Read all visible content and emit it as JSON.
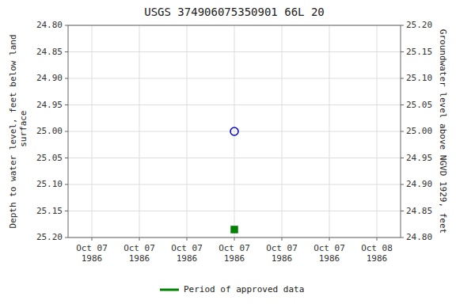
{
  "chart_data": {
    "type": "scatter",
    "title": "USGS 374906075350901 66L 20",
    "ylabel": "Depth to water level, feet below land\n surface",
    "y2label": "Groundwater level above NGVD 1929, feet",
    "categories": [
      "Oct 07\n1986",
      "Oct 07\n1986",
      "Oct 07\n1986",
      "Oct 07\n1986",
      "Oct 07\n1986",
      "Oct 07\n1986",
      "Oct 08\n1986"
    ],
    "series": [
      {
        "color": "#0000cc",
        "marker": "open-circle",
        "values": [
          null,
          null,
          null,
          25.0,
          null,
          null,
          null
        ]
      },
      {
        "name": "Period of approved data",
        "color": "#008000",
        "marker": "square",
        "values": [
          null,
          null,
          null,
          25.185,
          null,
          null,
          null
        ]
      }
    ],
    "ylim": [
      25.2,
      24.8
    ],
    "yticks": [
      {
        "value": 24.8,
        "label": "24.80"
      },
      24.85,
      {
        "value": 24.9,
        "label": "24.90"
      },
      24.95,
      {
        "value": 25.0,
        "label": "25.00"
      },
      25.05,
      {
        "value": 25.1,
        "label": "25.10"
      },
      25.15,
      {
        "value": 25.2,
        "label": "25.20"
      }
    ],
    "y2lim": [
      24.8,
      25.2
    ],
    "y2ticks": [
      {
        "value": 24.8,
        "label": "24.80"
      },
      24.85,
      {
        "value": 24.9,
        "label": "24.90"
      },
      24.95,
      {
        "value": 25.0,
        "label": "25.00"
      },
      25.05,
      {
        "value": 25.1,
        "label": "25.10"
      },
      25.15,
      {
        "value": 25.2,
        "label": "25.20"
      }
    ],
    "grid": true,
    "legend": "bottom"
  }
}
